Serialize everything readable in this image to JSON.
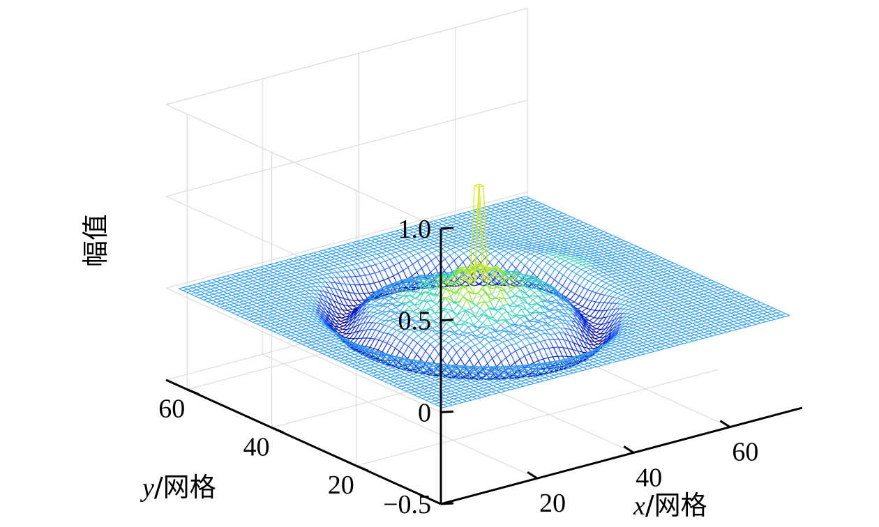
{
  "chart_data": {
    "type": "surface-mesh",
    "title": "",
    "xlabel": {
      "var": "x",
      "unit": "/网格"
    },
    "ylabel": {
      "var": "y",
      "unit": "/网格"
    },
    "zlabel": "幅值",
    "xlim": [
      0,
      75
    ],
    "ylim": [
      0,
      65
    ],
    "zlim": [
      -0.5,
      1.0
    ],
    "x_ticks": [
      "20",
      "40",
      "60"
    ],
    "x_tick_values": [
      20,
      40,
      60
    ],
    "y_ticks": [
      "20",
      "40",
      "60"
    ],
    "y_tick_values": [
      20,
      40,
      60
    ],
    "z_ticks": [
      "−0.5",
      "0",
      "0.5",
      "1.0"
    ],
    "z_tick_values": [
      -0.5,
      0,
      0.5,
      1.0
    ],
    "grid": true,
    "colormap": [
      "#00008c",
      "#0022c8",
      "#1e5aff",
      "#36a0f0",
      "#40d2c0",
      "#8ee640",
      "#d2e628"
    ],
    "surface": {
      "grid_size": [
        72,
        64
      ],
      "baseline": 0,
      "peak": {
        "x": 36,
        "y": 32,
        "value": 0.65
      },
      "features": [
        {
          "kind": "ring",
          "cx": 34,
          "cy": 32,
          "r": 20,
          "amp": -0.14,
          "width": 3.0
        },
        {
          "kind": "bump",
          "cx": 34,
          "cy": 32,
          "r": 9,
          "amp": 0.1
        },
        {
          "kind": "bump",
          "cx": 40,
          "cy": 36,
          "r": 5,
          "amp": 0.08
        },
        {
          "kind": "bump",
          "cx": 53,
          "cy": 36,
          "r": 10,
          "amp": 0.05
        }
      ]
    }
  }
}
